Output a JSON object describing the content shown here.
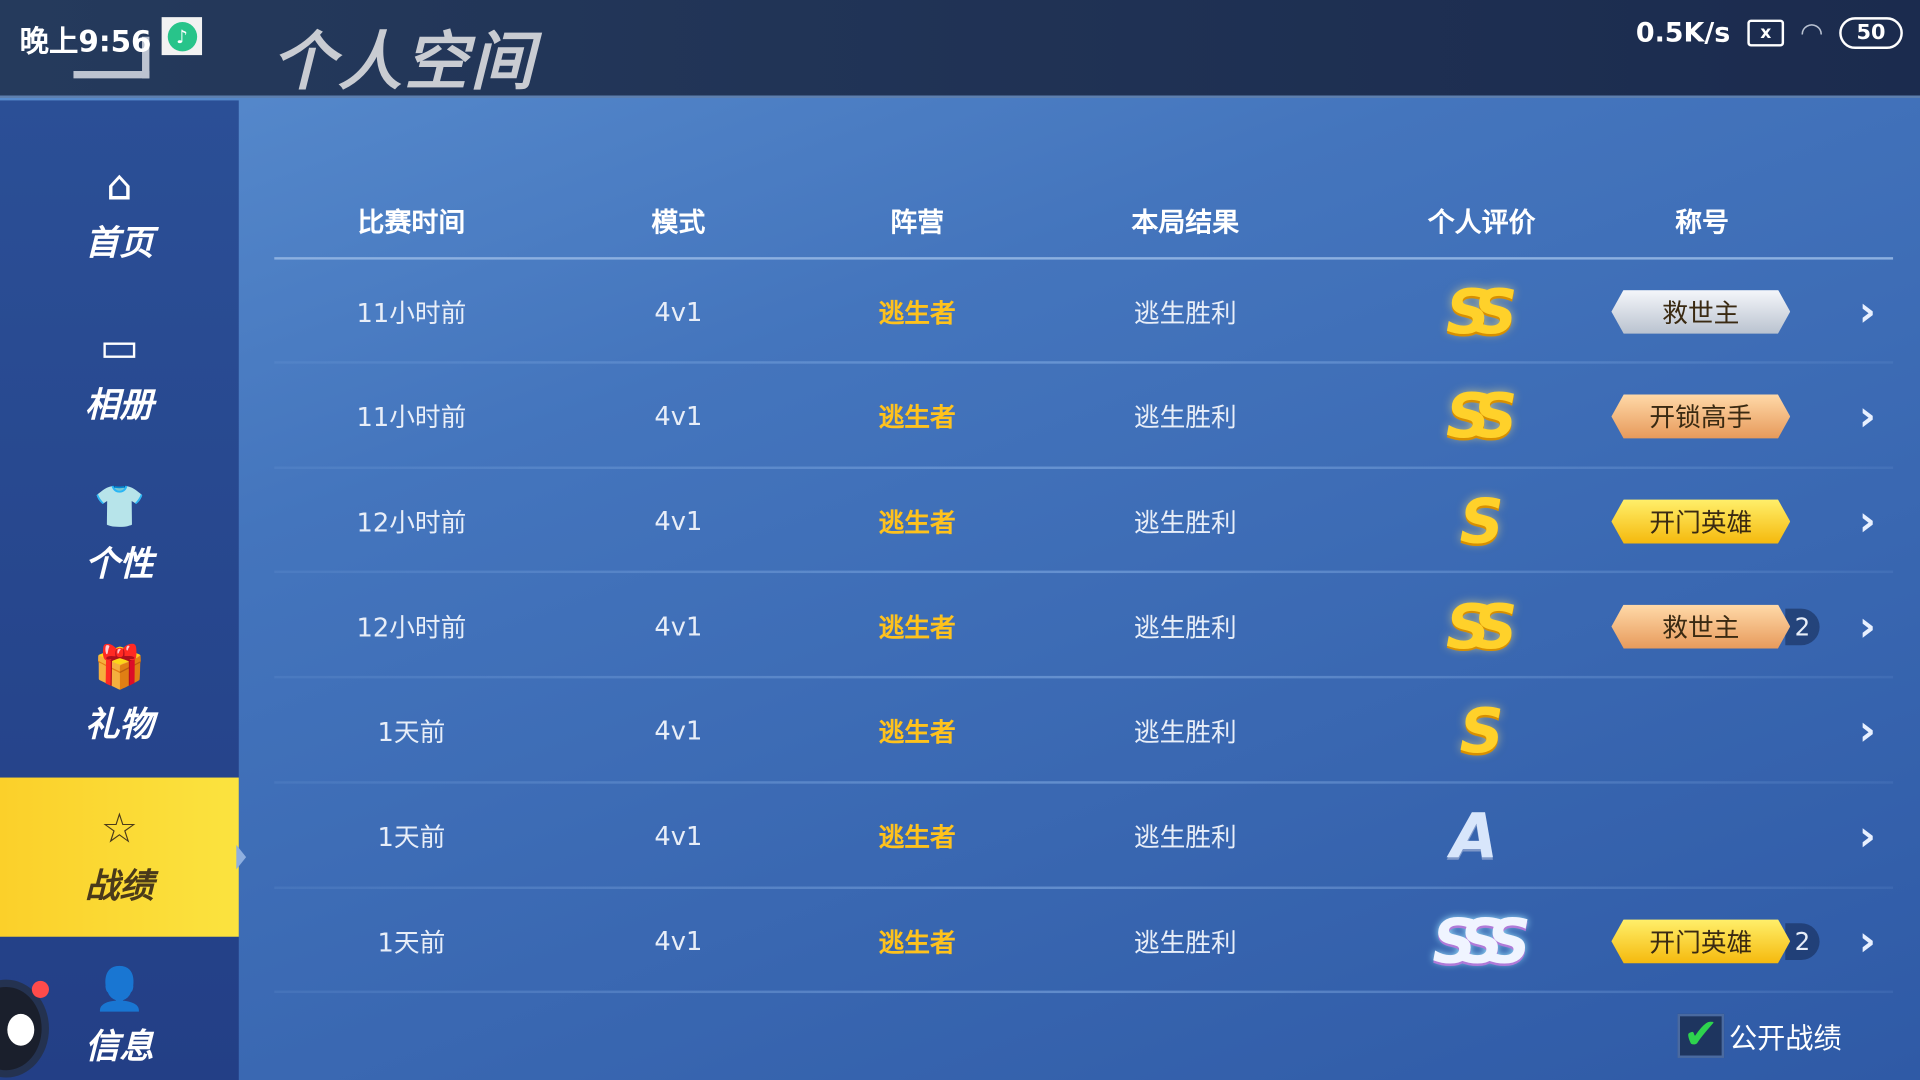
{
  "status_bar": {
    "time": "晚上9:56",
    "net_speed": "0.5K/s",
    "battery": "50",
    "sim_icon": "sim-x-icon",
    "wifi_icon": "wifi-icon"
  },
  "header": {
    "title": "个人空间",
    "back_icon": "back-arrow-icon"
  },
  "sidebar": {
    "items": [
      {
        "label": "首页",
        "icon": "home-icon",
        "glyph": "⌂"
      },
      {
        "label": "相册",
        "icon": "photo-album-icon",
        "glyph": "▭"
      },
      {
        "label": "个性",
        "icon": "shirt-icon",
        "glyph": "👕"
      },
      {
        "label": "礼物",
        "icon": "gift-icon",
        "glyph": "🎁"
      },
      {
        "label": "战绩",
        "icon": "badge-star-icon",
        "glyph": "☆",
        "active": true
      },
      {
        "label": "信息",
        "icon": "person-icon",
        "glyph": "👤"
      }
    ]
  },
  "table": {
    "columns": [
      "比赛时间",
      "模式",
      "阵营",
      "本局结果",
      "个人评价",
      "称号"
    ],
    "rows": [
      {
        "time": "11小时前",
        "mode": "4v1",
        "camp": "逃生者",
        "result": "逃生胜利",
        "rating": "SS",
        "title": "救世主",
        "title_style": "silver",
        "count": ""
      },
      {
        "time": "11小时前",
        "mode": "4v1",
        "camp": "逃生者",
        "result": "逃生胜利",
        "rating": "SS",
        "title": "开锁高手",
        "title_style": "bronze",
        "count": ""
      },
      {
        "time": "12小时前",
        "mode": "4v1",
        "camp": "逃生者",
        "result": "逃生胜利",
        "rating": "S",
        "title": "开门英雄",
        "title_style": "gold",
        "count": ""
      },
      {
        "time": "12小时前",
        "mode": "4v1",
        "camp": "逃生者",
        "result": "逃生胜利",
        "rating": "SS",
        "title": "救世主",
        "title_style": "bronze",
        "count": "2"
      },
      {
        "time": "1天前",
        "mode": "4v1",
        "camp": "逃生者",
        "result": "逃生胜利",
        "rating": "S",
        "title": "",
        "title_style": "",
        "count": ""
      },
      {
        "time": "1天前",
        "mode": "4v1",
        "camp": "逃生者",
        "result": "逃生胜利",
        "rating": "A",
        "title": "",
        "title_style": "",
        "count": ""
      },
      {
        "time": "1天前",
        "mode": "4v1",
        "camp": "逃生者",
        "result": "逃生胜利",
        "rating": "SSS",
        "title": "开门英雄",
        "title_style": "gold",
        "count": "2"
      }
    ]
  },
  "footer": {
    "public_label": "公开战绩",
    "public_checked": true
  },
  "colors": {
    "camp": "#ffc21c",
    "active_nav": "#fbd02a",
    "checkbox": "#2ed34e"
  }
}
